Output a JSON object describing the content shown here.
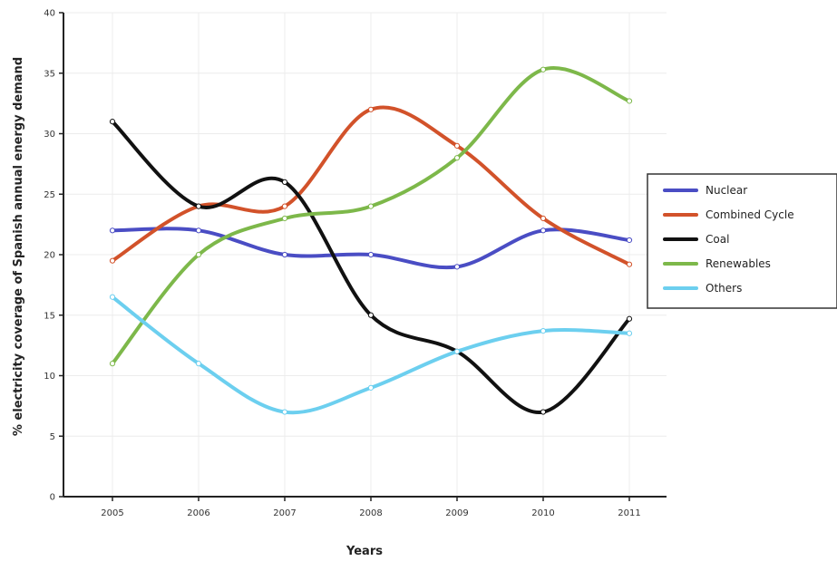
{
  "chart_data": {
    "type": "line",
    "xlabel": "Years",
    "ylabel": "% electricity coverage of Spanish annual energy demand",
    "x": [
      2005,
      2006,
      2007,
      2008,
      2009,
      2010,
      2011
    ],
    "xticks": [
      "2005",
      "2006",
      "2007",
      "2008",
      "2009",
      "2010",
      "2011"
    ],
    "yticks": [
      "0",
      "5",
      "10",
      "15",
      "20",
      "25",
      "30",
      "35",
      "40"
    ],
    "ylim": [
      0,
      40
    ],
    "grid": true,
    "legend_position": "right",
    "series": [
      {
        "name": "Nuclear",
        "color": "#4A4DC4",
        "values": [
          22,
          22,
          20,
          20,
          19,
          22,
          21.2
        ]
      },
      {
        "name": "Combined Cycle",
        "color": "#D2522A",
        "values": [
          19.5,
          24,
          24,
          32,
          29,
          23,
          19.2
        ]
      },
      {
        "name": "Coal",
        "color": "#111111",
        "values": [
          31,
          24,
          26,
          15,
          12,
          7,
          14.7
        ]
      },
      {
        "name": "Renewables",
        "color": "#7DB84A",
        "values": [
          11,
          20,
          23,
          24,
          28,
          35.3,
          32.7
        ]
      },
      {
        "name": "Others",
        "color": "#6CCFEF",
        "values": [
          16.5,
          11,
          7,
          9,
          12,
          13.7,
          13.5
        ]
      }
    ]
  }
}
